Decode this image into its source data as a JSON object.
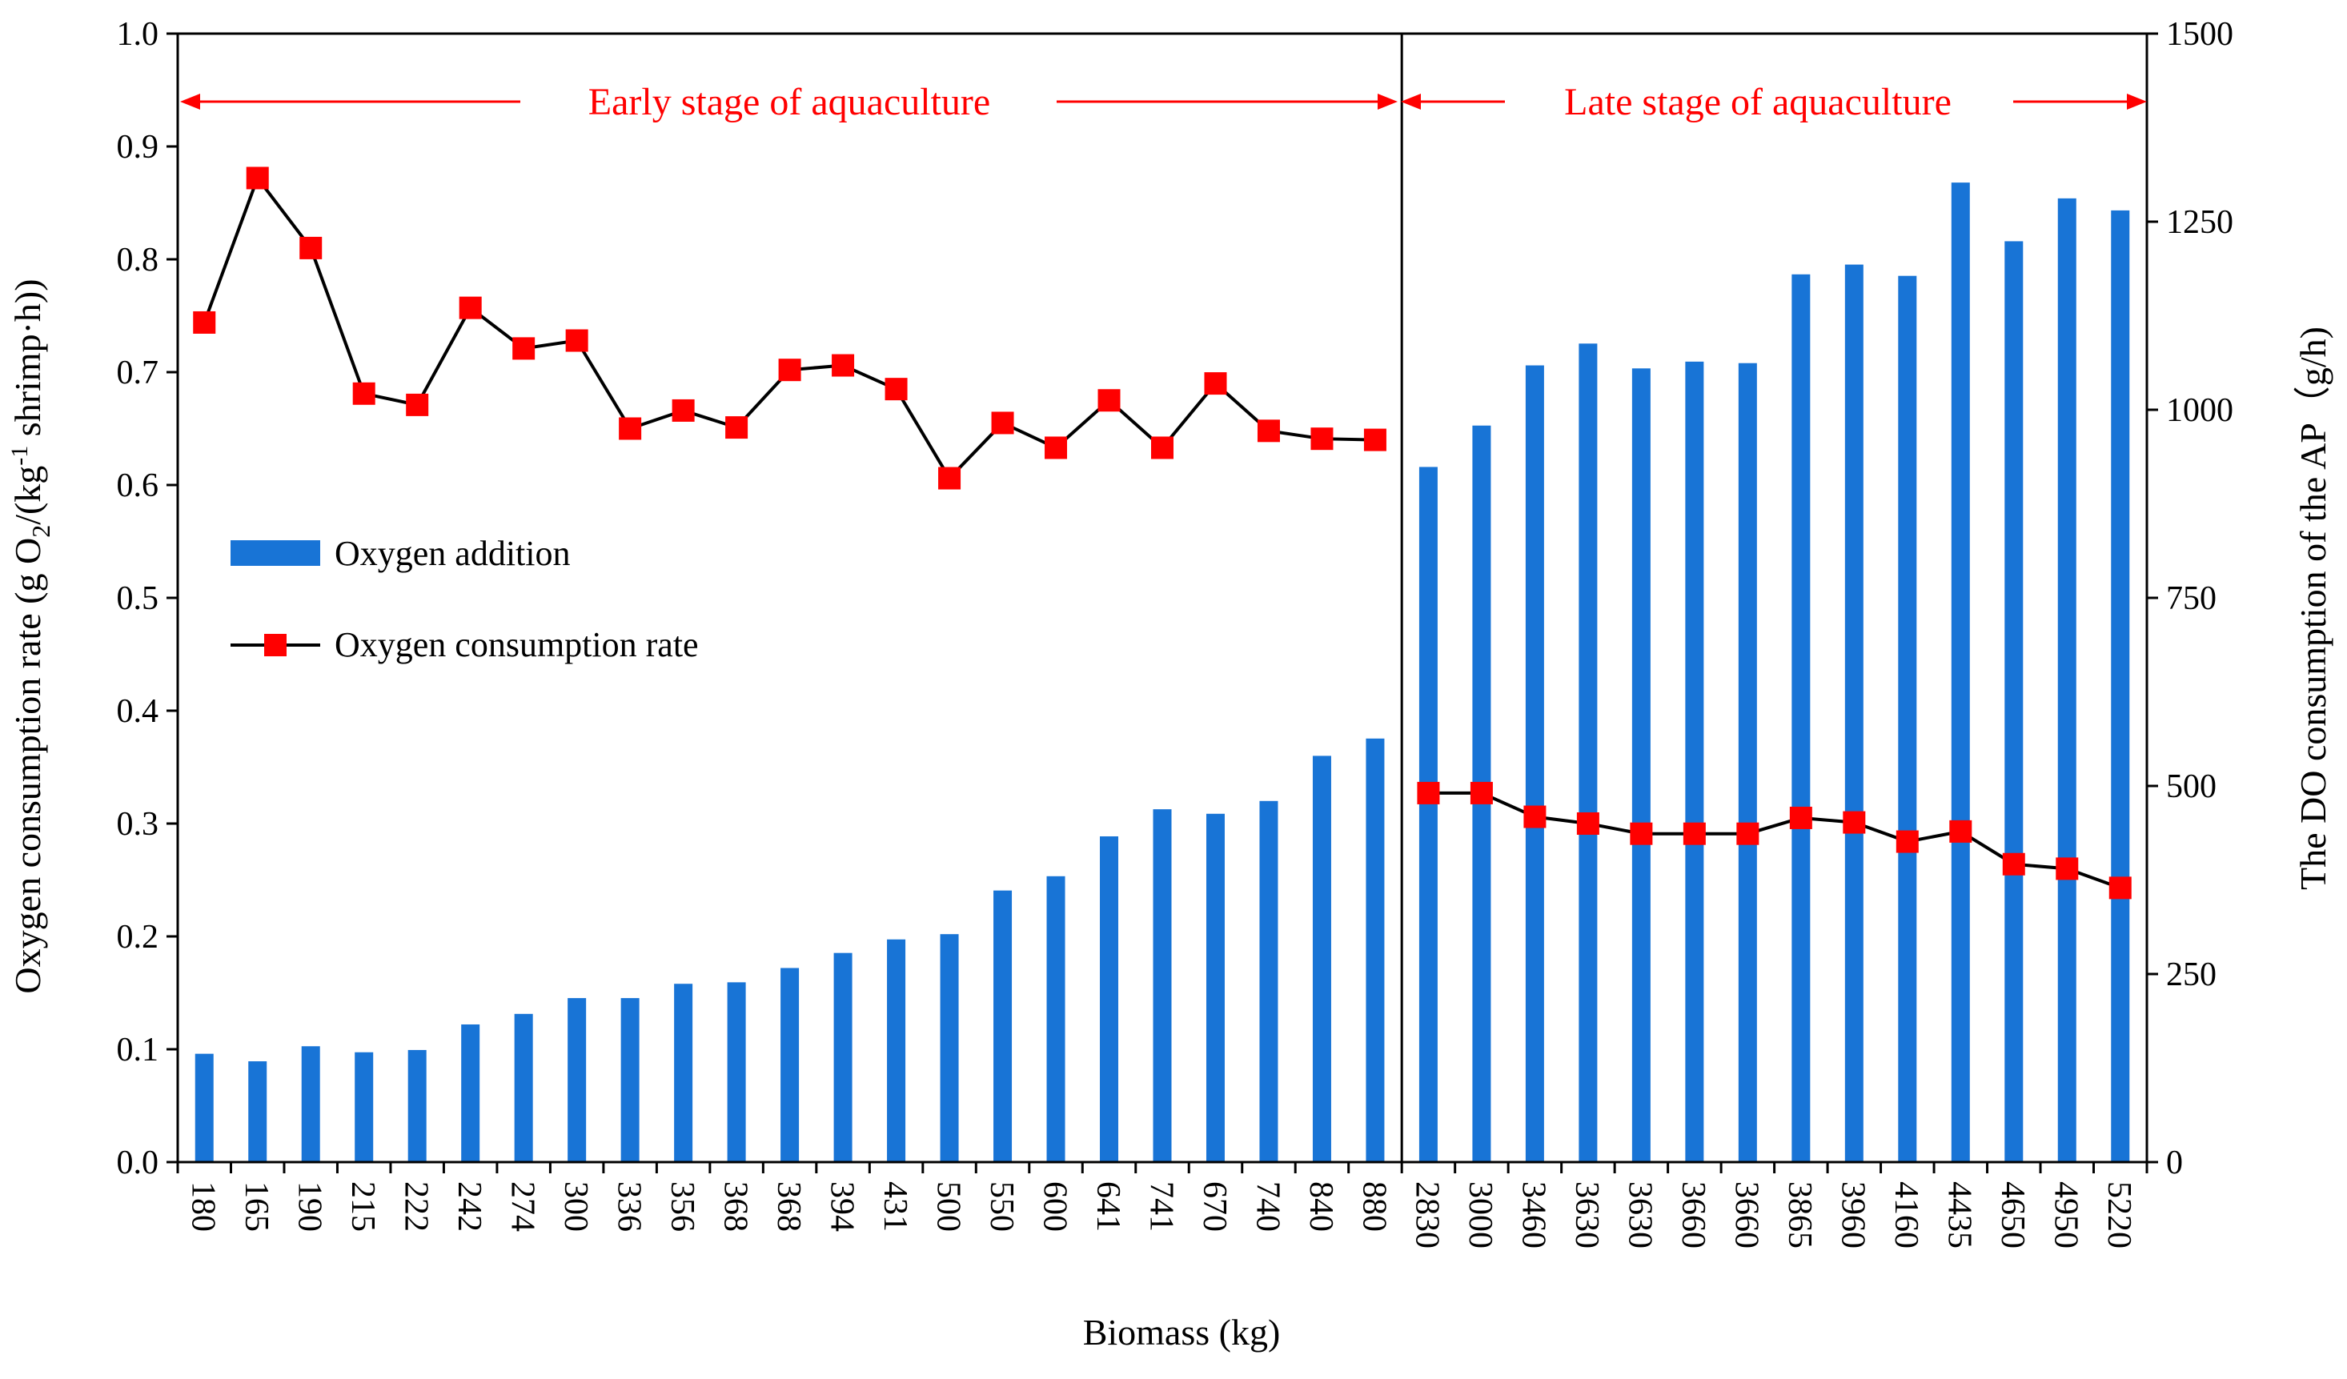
{
  "chart_data": {
    "type": "bar+line",
    "xlabel": "Biomass (kg)",
    "ylabel_left": "Oxygen consumption rate (g O2/(kg-1 shrimp·h))",
    "ylabel_left_parts": {
      "p1": "Oxygen consumption rate (g O",
      "sub": "2",
      "p2": "/(kg",
      "sup": "-1",
      "p3": " shrimp·h))"
    },
    "ylabel_right": "The DO consumption of the AP（g/h)",
    "ylim_left": [
      0,
      1.0
    ],
    "ylim_right": [
      0,
      1500
    ],
    "yticks_left": [
      "0.0",
      "0.1",
      "0.2",
      "0.3",
      "0.4",
      "0.5",
      "0.6",
      "0.7",
      "0.8",
      "0.9",
      "1.0"
    ],
    "yticks_right": [
      "0",
      "250",
      "500",
      "750",
      "1000",
      "1250",
      "1500"
    ],
    "categories": [
      "180",
      "165",
      "190",
      "215",
      "222",
      "242",
      "274",
      "300",
      "336",
      "356",
      "368",
      "368",
      "394",
      "431",
      "500",
      "550",
      "600",
      "641",
      "741",
      "670",
      "740",
      "840",
      "880",
      "2830",
      "3000",
      "3460",
      "3630",
      "3630",
      "3660",
      "3660",
      "3865",
      "3960",
      "4160",
      "4435",
      "4650",
      "4950",
      "5220"
    ],
    "series": [
      {
        "name": "Oxygen addition",
        "type": "bar",
        "axis": "right",
        "color": "#1874d6",
        "values": [
          144,
          134,
          154,
          146,
          149,
          183,
          197,
          218,
          218,
          237,
          239,
          258,
          278,
          296,
          303,
          361,
          380,
          433,
          469,
          463,
          480,
          540,
          563,
          924,
          979,
          1059,
          1088,
          1055,
          1064,
          1062,
          1180,
          1193,
          1178,
          1302,
          1224,
          1281,
          1265
        ]
      },
      {
        "name": "Oxygen consumption rate",
        "type": "line",
        "axis": "left",
        "color": "#000000",
        "marker_color": "#ff0000",
        "segments": [
          {
            "start": 0,
            "values": [
              0.744,
              0.872,
              0.81,
              0.681,
              0.671,
              0.757,
              0.721,
              0.728,
              0.65,
              0.666,
              0.651,
              0.702,
              0.706,
              0.685,
              0.606,
              0.655,
              0.633,
              0.675,
              0.633,
              0.69,
              0.648,
              0.641,
              0.64
            ]
          },
          {
            "start": 23,
            "values": [
              0.327,
              0.327,
              0.306,
              0.3,
              0.291,
              0.291,
              0.291,
              0.305,
              0.301,
              0.284,
              0.293,
              0.264,
              0.26,
              0.243
            ]
          }
        ]
      }
    ],
    "annotations": {
      "early": "Early stage of aquaculture",
      "late": "Late stage of aquaculture"
    },
    "legend": {
      "position": "upper-left",
      "bar_label": "Oxygen addition",
      "line_label": "Oxygen consumption rate"
    }
  }
}
